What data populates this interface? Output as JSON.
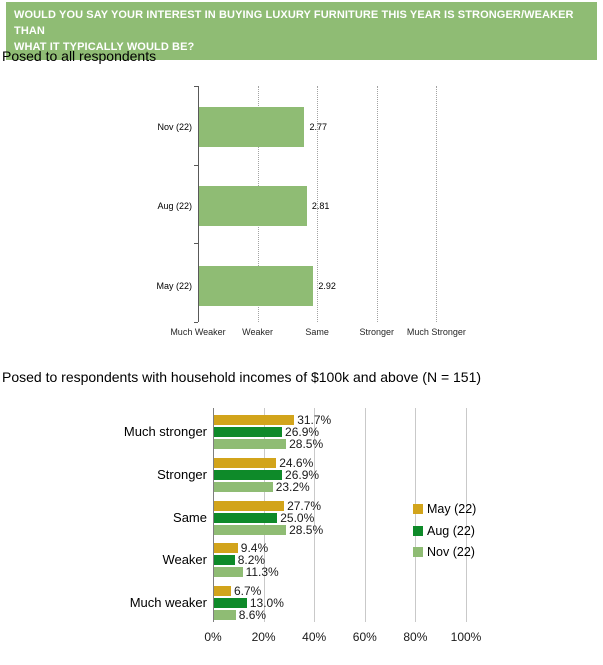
{
  "header": {
    "line1": "WOULD YOU SAY YOUR INTEREST IN BUYING LUXURY FURNITURE THIS YEAR IS STRONGER/WEAKER THAN",
    "line2": "WHAT IT TYPICALLY WOULD BE?",
    "bg_color": "#8FBC74",
    "text_color": "#FFFFFF"
  },
  "sections": {
    "all_respondents": {
      "title": "Posed to all respondents"
    },
    "high_income": {
      "title": "Posed to respondents with household incomes of $100k and above (N = 151)"
    }
  },
  "chart_data": [
    {
      "id": "mean-interest-by-wave",
      "type": "bar",
      "orientation": "horizontal",
      "title": "Posed to all respondents",
      "categories": [
        "Nov (22)",
        "Aug (22)",
        "May (22)"
      ],
      "values": [
        2.77,
        2.81,
        2.92
      ],
      "data_labels": [
        "2.77",
        "2.81",
        "2.92"
      ],
      "x_tick_labels": [
        "Much Weaker",
        "Weaker",
        "Same",
        "Stronger",
        "Much Stronger"
      ],
      "x_tick_values": [
        1,
        2,
        3,
        4,
        5
      ],
      "xlim": [
        1,
        5
      ],
      "bar_color": "#8FBC74",
      "grid": "vertical-dotted",
      "legend_position": "none"
    },
    {
      "id": "interest-distribution-high-income",
      "type": "bar",
      "orientation": "horizontal",
      "grouped": true,
      "title": "Posed to respondents with household incomes of $100k and above (N = 151)",
      "categories": [
        "Much stronger",
        "Stronger",
        "Same",
        "Weaker",
        "Much weaker"
      ],
      "series": [
        {
          "name": "May (22)",
          "color": "#D2A41B",
          "values": [
            31.7,
            24.6,
            27.7,
            9.4,
            6.7
          ],
          "labels": [
            "31.7%",
            "24.6%",
            "27.7%",
            "9.4%",
            "6.7%"
          ]
        },
        {
          "name": "Aug (22)",
          "color": "#0E8A29",
          "values": [
            26.9,
            26.9,
            25.0,
            8.2,
            13.0
          ],
          "labels": [
            "26.9%",
            "26.9%",
            "25.0%",
            "8.2%",
            "13.0%"
          ]
        },
        {
          "name": "Nov (22)",
          "color": "#8FBC74",
          "values": [
            28.5,
            23.2,
            28.5,
            11.3,
            8.6
          ],
          "labels": [
            "28.5%",
            "23.2%",
            "28.5%",
            "11.3%",
            "8.6%"
          ]
        }
      ],
      "x_tick_labels": [
        "0%",
        "20%",
        "40%",
        "60%",
        "80%",
        "100%"
      ],
      "x_tick_values": [
        0,
        20,
        40,
        60,
        80,
        100
      ],
      "xlim": [
        0,
        100
      ],
      "grid": "vertical-solid",
      "legend_position": "right-overlay"
    }
  ]
}
